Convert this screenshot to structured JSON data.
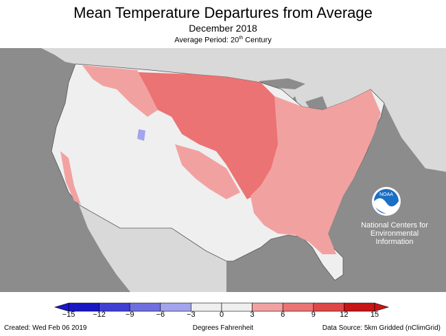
{
  "header": {
    "title": "Mean Temperature Departures from Average",
    "subtitle": "December 2018",
    "period_prefix": "Average Period: 20",
    "period_sup": "th",
    "period_suffix": " Century"
  },
  "legend": {
    "ticks": [
      "−15",
      "−12",
      "−9",
      "−6",
      "−3",
      "0",
      "3",
      "6",
      "9",
      "12",
      "15"
    ],
    "colors": [
      "#1a17c6",
      "#3f3fd6",
      "#6f6fe0",
      "#a3a3ee",
      "#efefef",
      "#efefef",
      "#f2a1a1",
      "#ec7373",
      "#e04848",
      "#c81515"
    ],
    "unit_label": "Degrees Fahrenheit"
  },
  "branding": {
    "logo_text": "NOAA",
    "org_line1": "National Centers for",
    "org_line2": "Environmental",
    "org_line3": "Information"
  },
  "footer": {
    "created": "Created: Wed Feb 06 2019",
    "source": "Data Source: 5km Gridded (nClimGrid)"
  },
  "colors": {
    "ocean": "#8c8c8c",
    "canada_mexico": "#d9d9d9",
    "near_normal": "#efefef",
    "warm_light": "#f2a1a1",
    "warm_mid": "#ec7373",
    "cool_light": "#a3a3ee"
  }
}
